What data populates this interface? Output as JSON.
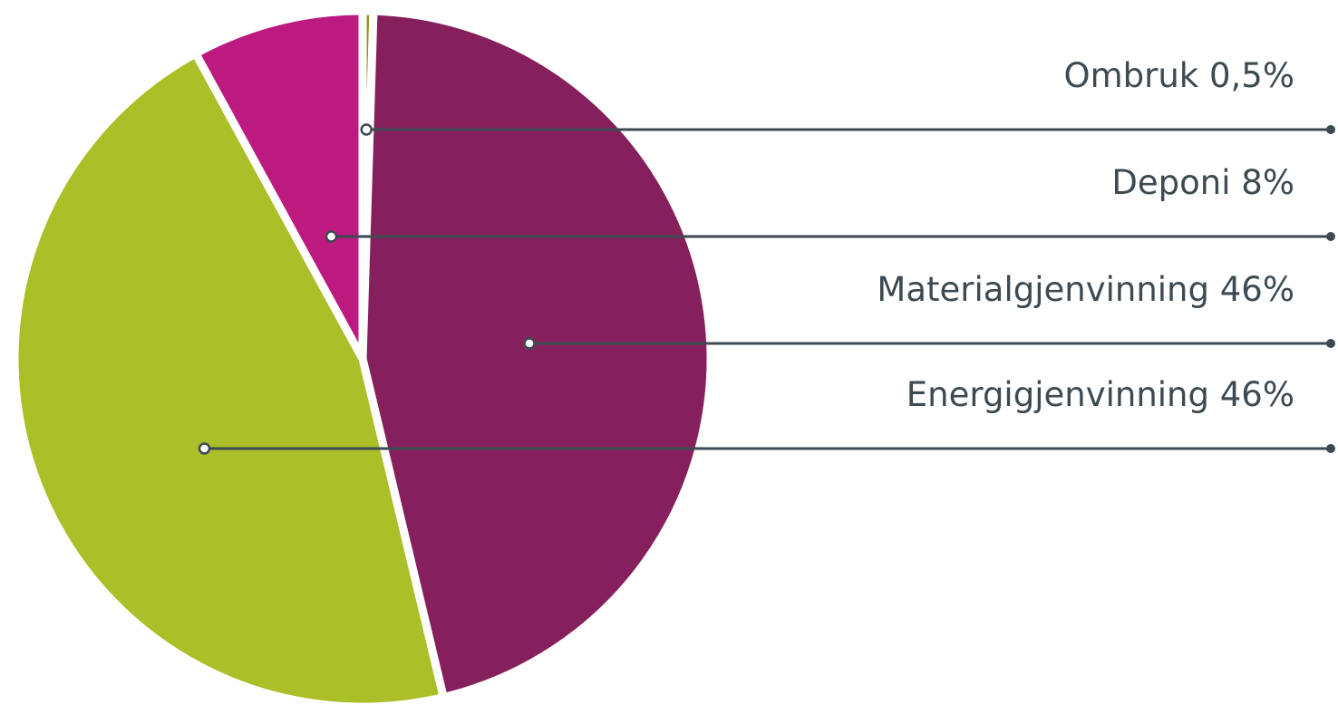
{
  "chart_data": {
    "type": "pie",
    "slices": [
      {
        "label": "Ombruk 0,5%",
        "value": 0.5,
        "color": "#8b9a1f"
      },
      {
        "label": "Materialgjenvinning 46%",
        "value": 46,
        "color": "#86205c"
      },
      {
        "label": "Energigjenvinning 46%",
        "value": 46,
        "color": "#abbf28"
      },
      {
        "label": "Deponi 8%",
        "value": 8,
        "color": "#bd1a80"
      }
    ],
    "legend_order": [
      "Ombruk 0,5%",
      "Deponi 8%",
      "Materialgjenvinning 46%",
      "Energigjenvinning 46%"
    ],
    "legend_placement": "right",
    "leader_line_color": "#3d4a52"
  }
}
